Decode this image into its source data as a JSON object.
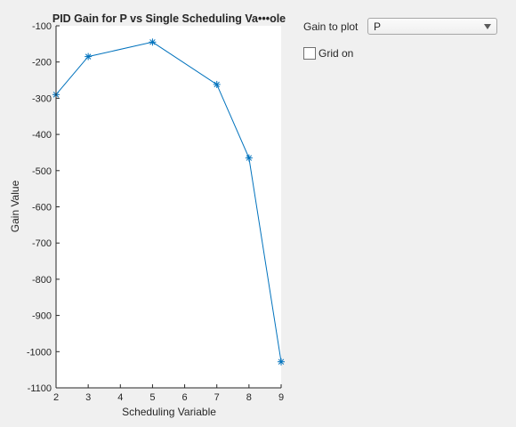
{
  "controls": {
    "gain_label": "Gain to plot",
    "gain_selected": "P",
    "grid_label": "Grid on",
    "grid_checked": false
  },
  "chart_data": {
    "type": "line",
    "title": "PID Gain for P vs Single Scheduling Va•••ole",
    "xlabel": "Scheduling Variable",
    "ylabel": "Gain Value",
    "xlim": [
      2,
      9
    ],
    "ylim": [
      -1100,
      -100
    ],
    "x_ticks": [
      2,
      3,
      4,
      5,
      6,
      7,
      8,
      9
    ],
    "y_ticks": [
      -100,
      -200,
      -300,
      -400,
      -500,
      -600,
      -700,
      -800,
      -900,
      -1000,
      -1100
    ],
    "grid": false,
    "marker": "*",
    "series_color": "#0072bd",
    "series": [
      {
        "x": [
          2,
          3,
          5,
          7,
          8,
          9
        ],
        "y": [
          -290,
          -185,
          -145,
          -262,
          -465,
          -1028
        ]
      }
    ]
  }
}
